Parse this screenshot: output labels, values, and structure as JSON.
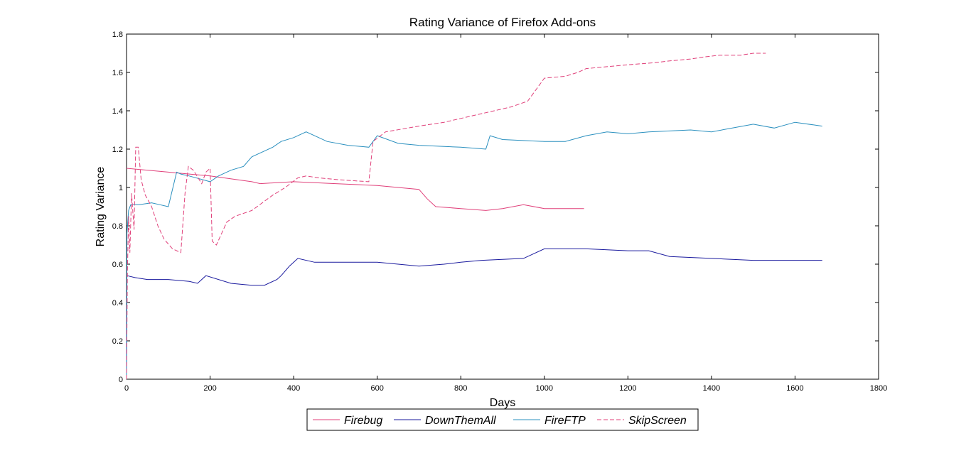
{
  "chart_data": {
    "type": "line",
    "title": "Rating Variance of Firefox Add-ons",
    "xlabel": "Days",
    "ylabel": "Rating Variance",
    "xlim": [
      0,
      1800
    ],
    "ylim": [
      0,
      1.8
    ],
    "xticks": [
      0,
      200,
      400,
      600,
      800,
      1000,
      1200,
      1400,
      1600,
      1800
    ],
    "yticks": [
      0,
      0.2,
      0.4,
      0.6,
      0.8,
      1,
      1.2,
      1.4,
      1.6,
      1.8
    ],
    "xtick_labels": [
      "0",
      "200",
      "400",
      "600",
      "800",
      "1000",
      "1200",
      "1400",
      "1600",
      "1800"
    ],
    "ytick_labels": [
      "0",
      "0.2",
      "0.4",
      "0.6",
      "0.8",
      "1",
      "1.2",
      "1.4",
      "1.6",
      "1.8"
    ],
    "grid": false,
    "legend_position": "bottom-center",
    "series": [
      {
        "name": "Firebug",
        "color": "#e0407a",
        "dash": "solid",
        "x": [
          0,
          100,
          200,
          300,
          320,
          400,
          500,
          600,
          700,
          720,
          740,
          800,
          860,
          900,
          950,
          1000,
          1050,
          1095
        ],
        "y": [
          1.1,
          1.08,
          1.06,
          1.03,
          1.02,
          1.03,
          1.02,
          1.01,
          0.99,
          0.94,
          0.9,
          0.89,
          0.88,
          0.89,
          0.91,
          0.89,
          0.89,
          0.89
        ]
      },
      {
        "name": "DownThemAll",
        "color": "#1a1a9e",
        "dash": "solid",
        "x": [
          0,
          1,
          20,
          50,
          100,
          150,
          170,
          190,
          250,
          300,
          330,
          360,
          370,
          390,
          410,
          450,
          550,
          600,
          700,
          760,
          800,
          850,
          950,
          1000,
          1100,
          1200,
          1250,
          1300,
          1400,
          1500,
          1600,
          1665
        ],
        "y": [
          0.0,
          0.54,
          0.53,
          0.52,
          0.52,
          0.51,
          0.5,
          0.54,
          0.5,
          0.49,
          0.49,
          0.52,
          0.54,
          0.59,
          0.63,
          0.61,
          0.61,
          0.61,
          0.59,
          0.6,
          0.61,
          0.62,
          0.63,
          0.68,
          0.68,
          0.67,
          0.67,
          0.64,
          0.63,
          0.62,
          0.62,
          0.62
        ]
      },
      {
        "name": "FireFTP",
        "color": "#2b90bf",
        "dash": "solid",
        "x": [
          0,
          1,
          5,
          10,
          30,
          60,
          80,
          100,
          120,
          130,
          150,
          200,
          220,
          250,
          280,
          300,
          330,
          350,
          370,
          400,
          430,
          450,
          480,
          530,
          580,
          600,
          650,
          700,
          800,
          860,
          870,
          900,
          1000,
          1050,
          1100,
          1150,
          1200,
          1250,
          1350,
          1400,
          1450,
          1500,
          1550,
          1600,
          1665
        ],
        "y": [
          0.0,
          0.76,
          0.88,
          0.91,
          0.91,
          0.92,
          0.91,
          0.9,
          1.08,
          1.07,
          1.06,
          1.03,
          1.06,
          1.09,
          1.11,
          1.16,
          1.19,
          1.21,
          1.24,
          1.26,
          1.29,
          1.27,
          1.24,
          1.22,
          1.21,
          1.27,
          1.23,
          1.22,
          1.21,
          1.2,
          1.27,
          1.25,
          1.24,
          1.24,
          1.27,
          1.29,
          1.28,
          1.29,
          1.3,
          1.29,
          1.31,
          1.33,
          1.31,
          1.34,
          1.32
        ]
      },
      {
        "name": "SkipScreen",
        "color": "#e0407a",
        "dash": "dashed",
        "x": [
          0,
          2,
          5,
          8,
          12,
          18,
          22,
          28,
          35,
          45,
          60,
          75,
          90,
          110,
          130,
          140,
          148,
          160,
          180,
          190,
          200,
          205,
          215,
          240,
          260,
          300,
          350,
          380,
          410,
          430,
          460,
          510,
          580,
          590,
          620,
          700,
          760,
          800,
          860,
          920,
          960,
          1000,
          1050,
          1080,
          1100,
          1150,
          1200,
          1260,
          1300,
          1350,
          1380,
          1420,
          1470,
          1500,
          1530
        ],
        "y": [
          0.0,
          0.55,
          0.85,
          0.66,
          0.97,
          0.78,
          1.21,
          1.21,
          1.04,
          0.96,
          0.9,
          0.8,
          0.73,
          0.68,
          0.66,
          0.97,
          1.11,
          1.09,
          1.02,
          1.08,
          1.1,
          0.72,
          0.7,
          0.82,
          0.85,
          0.88,
          0.96,
          1.0,
          1.05,
          1.06,
          1.05,
          1.04,
          1.03,
          1.24,
          1.29,
          1.32,
          1.34,
          1.36,
          1.39,
          1.42,
          1.45,
          1.57,
          1.58,
          1.6,
          1.62,
          1.63,
          1.64,
          1.65,
          1.66,
          1.67,
          1.68,
          1.69,
          1.69,
          1.7,
          1.7
        ]
      }
    ]
  }
}
